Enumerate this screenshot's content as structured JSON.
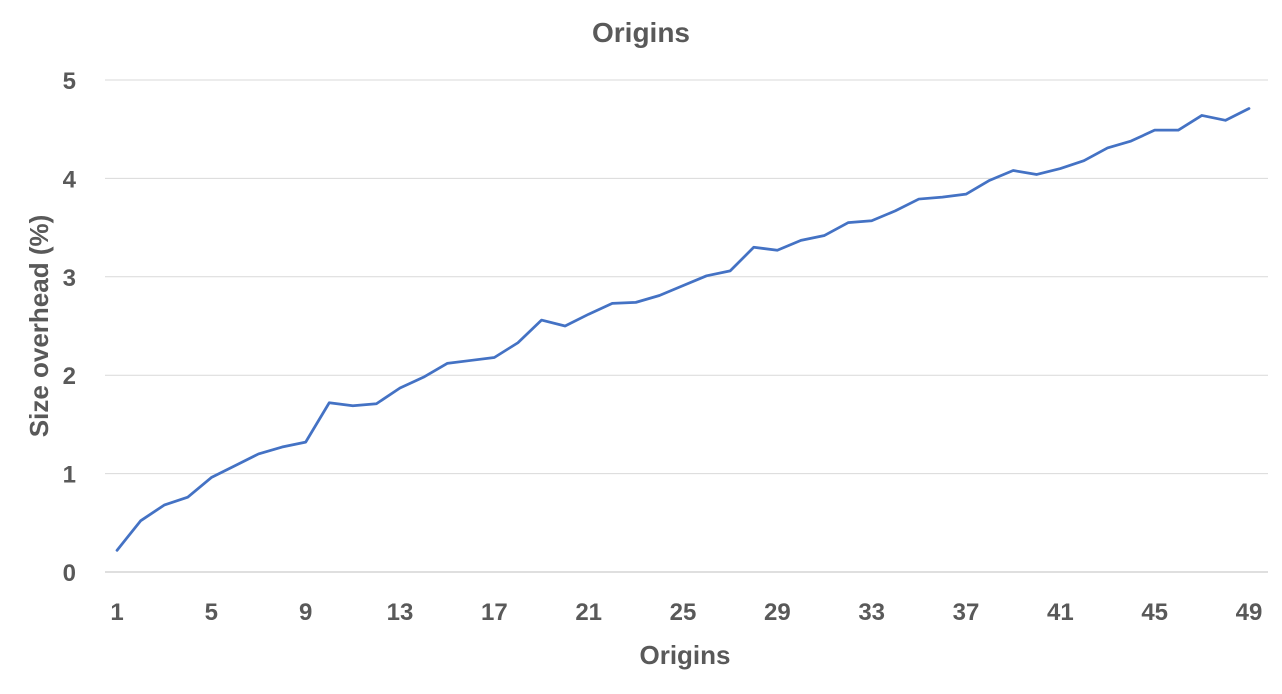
{
  "chart_data": {
    "type": "line",
    "title": "Origins",
    "xlabel": "Origins",
    "ylabel": "Size overhead (%)",
    "x": [
      1,
      2,
      3,
      4,
      5,
      6,
      7,
      8,
      9,
      10,
      11,
      12,
      13,
      14,
      15,
      16,
      17,
      18,
      19,
      20,
      21,
      22,
      23,
      24,
      25,
      26,
      27,
      28,
      29,
      30,
      31,
      32,
      33,
      34,
      35,
      36,
      37,
      38,
      39,
      40,
      41,
      42,
      43,
      44,
      45,
      46,
      47,
      48,
      49
    ],
    "x_tick_labels": [
      "1",
      "5",
      "9",
      "13",
      "17",
      "21",
      "25",
      "29",
      "33",
      "37",
      "41",
      "45",
      "49"
    ],
    "y_tick_labels": [
      "0",
      "1",
      "2",
      "3",
      "4",
      "5"
    ],
    "ylim": [
      0,
      5
    ],
    "grid": true,
    "line_color": "#4472C4",
    "series": [
      {
        "values": [
          0.22,
          0.52,
          0.68,
          0.76,
          0.96,
          1.08,
          1.2,
          1.27,
          1.32,
          1.72,
          1.69,
          1.71,
          1.87,
          1.98,
          2.12,
          2.15,
          2.18,
          2.33,
          2.56,
          2.5,
          2.62,
          2.73,
          2.74,
          2.81,
          2.91,
          3.01,
          3.06,
          3.3,
          3.27,
          3.37,
          3.42,
          3.55,
          3.57,
          3.67,
          3.79,
          3.81,
          3.84,
          3.98,
          4.08,
          4.04,
          4.1,
          4.18,
          4.31,
          4.38,
          4.49,
          4.49,
          4.64,
          4.59,
          4.71
        ]
      }
    ]
  }
}
